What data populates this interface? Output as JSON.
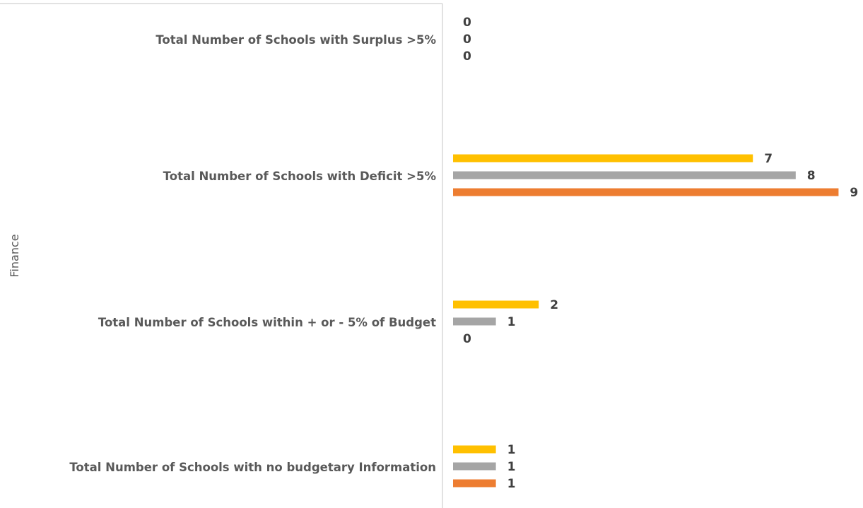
{
  "chart_data": {
    "type": "bar",
    "orientation": "horizontal",
    "axis_title": "Finance",
    "categories": [
      "Total Number of Schools with Surplus >5%",
      "Total Number of Schools with Deficit >5%",
      "Total Number of Schools within + or - 5% of Budget",
      "Total Number of Schools with no budgetary Information"
    ],
    "series": [
      {
        "color": "#FFC000",
        "values": [
          0,
          7,
          2,
          1
        ]
      },
      {
        "color": "#A5A5A5",
        "values": [
          0,
          8,
          1,
          1
        ]
      },
      {
        "color": "#ED7D31",
        "values": [
          0,
          9,
          0,
          1
        ]
      }
    ],
    "xlim": [
      0,
      9
    ],
    "grid": false,
    "legend": "none"
  }
}
